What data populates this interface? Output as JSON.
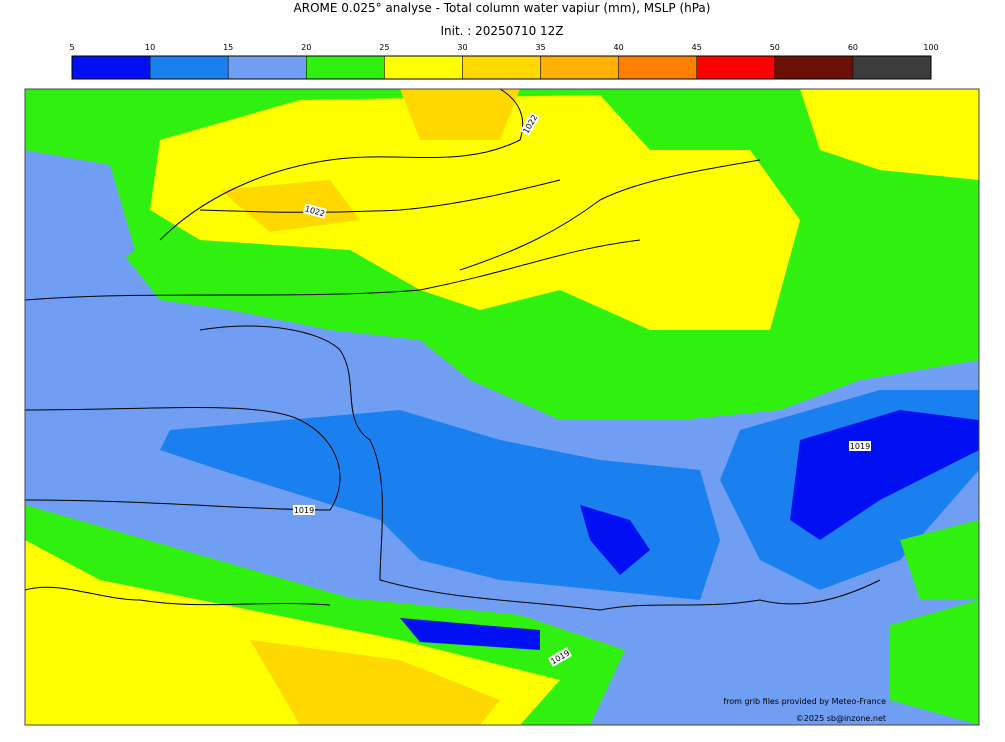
{
  "header": {
    "title": "AROME 0.025° analyse - Total column water vapiur (mm), MSLP (hPa)",
    "subtitle": "Init. : 20250710 12Z"
  },
  "colorbar": {
    "ticks": [
      5,
      10,
      15,
      20,
      25,
      30,
      35,
      40,
      45,
      50,
      60,
      100
    ],
    "colors": [
      "#0010f2",
      "#1a80ef",
      "#6f9ef3",
      "#2ff00f",
      "#ffff00",
      "#ffd800",
      "#ffb000",
      "#ff8000",
      "#ff0000",
      "#6a1008",
      "#3c3c3c"
    ]
  },
  "isobar_labels": [
    "1022",
    "1022",
    "1019",
    "1019",
    "1019"
  ],
  "credits": [
    "from grib files provided by Meteo-France",
    "©2025 sb@inzone.net"
  ]
}
